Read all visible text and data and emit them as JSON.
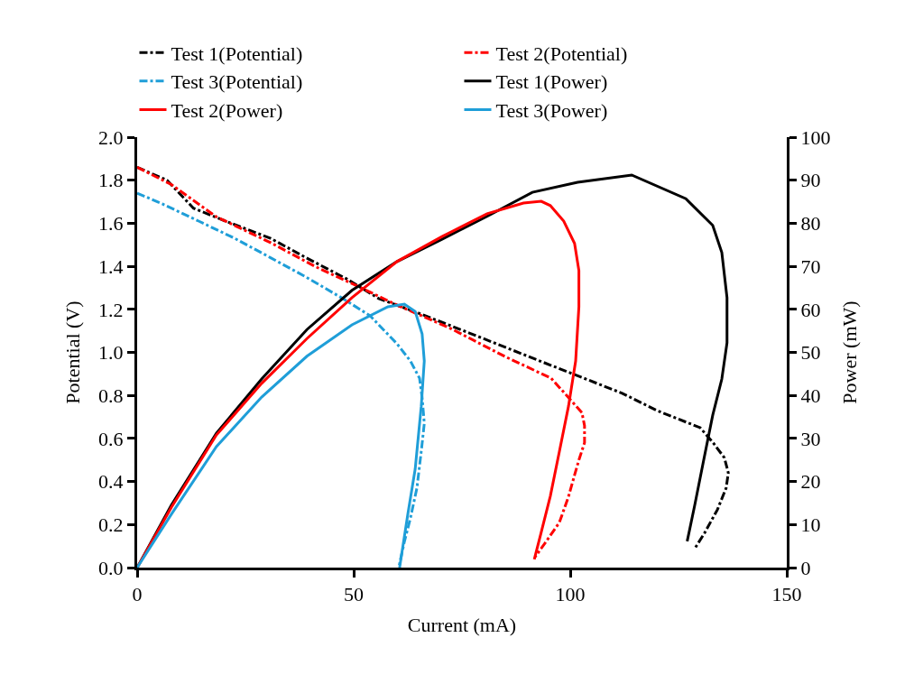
{
  "chart_data": {
    "type": "line",
    "xlabel": "Current (mA)",
    "ylabel": "Potential (V)",
    "y2label": "Power (mW)",
    "xlim": [
      0,
      150
    ],
    "xticks": [
      0,
      50,
      100,
      150
    ],
    "ylim": [
      0,
      2
    ],
    "yticks": [
      {
        "value": 0,
        "label": "0.0"
      },
      {
        "value": 0.2,
        "label": "0.2"
      },
      {
        "value": 0.4,
        "label": "0.4"
      },
      {
        "value": 0.6,
        "label": "0.6"
      },
      {
        "value": 0.8,
        "label": "0.8"
      },
      {
        "value": 1,
        "label": "1.0"
      },
      {
        "value": 1.2,
        "label": "1.2"
      },
      {
        "value": 1.4,
        "label": "1.4"
      },
      {
        "value": 1.6,
        "label": "1.6"
      },
      {
        "value": 1.8,
        "label": "1.8"
      },
      {
        "value": 2,
        "label": "2.0"
      }
    ],
    "y2lim": [
      0,
      100
    ],
    "y2ticks": [
      0,
      10,
      20,
      30,
      40,
      50,
      60,
      70,
      80,
      90,
      100
    ],
    "legend": "top",
    "marker": "none",
    "series": [
      {
        "name": "Test 1(Potential)",
        "color": "#000000",
        "line_style": "dashdot",
        "x": [
          0,
          6.9,
          13,
          20.4,
          30.8,
          39,
          48.5,
          55.8,
          64,
          76.7,
          93,
          112,
          120,
          130,
          133,
          135.6,
          136.5,
          136,
          134,
          131,
          128.8
        ],
        "values": [
          1.86,
          1.8,
          1.67,
          1.61,
          1.53,
          1.44,
          1.34,
          1.25,
          1.19,
          1.09,
          0.96,
          0.81,
          0.73,
          0.65,
          0.58,
          0.51,
          0.44,
          0.37,
          0.27,
          0.16,
          0.09
        ]
      },
      {
        "name": "Test 2(Potential)",
        "color": "#ff0000",
        "line_style": "dashdot",
        "x": [
          0,
          7.9,
          18.3,
          30.8,
          41,
          51.7,
          60,
          72.5,
          85,
          95.6,
          102.7,
          103.3,
          103.3,
          102,
          101,
          99.6,
          97.5,
          94.4,
          91.9
        ],
        "values": [
          1.86,
          1.78,
          1.63,
          1.51,
          1.4,
          1.3,
          1.22,
          1.11,
          0.98,
          0.88,
          0.72,
          0.66,
          0.58,
          0.5,
          0.43,
          0.33,
          0.21,
          0.12,
          0.05
        ]
      },
      {
        "name": "Test 3(Potential)",
        "color": "#1f9ed8",
        "line_style": "dashdot",
        "x": [
          0,
          5.8,
          14.2,
          22.5,
          30.8,
          39,
          47.5,
          53.8,
          60,
          63.1,
          65.2,
          65.8,
          66.3,
          65.6,
          64.6,
          63.1,
          61.7,
          60.4
        ],
        "values": [
          1.74,
          1.69,
          1.61,
          1.53,
          1.44,
          1.35,
          1.25,
          1.17,
          1.04,
          0.96,
          0.88,
          0.79,
          0.67,
          0.54,
          0.37,
          0.23,
          0.12,
          0
        ]
      },
      {
        "name": "Test 1(Power)",
        "color": "#000000",
        "line_style": "solid",
        "axis": "y2",
        "x": [
          0,
          7.9,
          18.3,
          28.75,
          39.2,
          49.6,
          60,
          70.4,
          80.8,
          91.25,
          101.7,
          114.2,
          126.7,
          132.9,
          135,
          136.2,
          136.2,
          135,
          132.9,
          130.8,
          128.75,
          127
        ],
        "values": [
          0,
          14.5,
          31.2,
          43.8,
          55.3,
          64.4,
          71.1,
          76.3,
          81.6,
          87.2,
          89.5,
          91.2,
          85.7,
          79.5,
          73.2,
          62.7,
          52.2,
          43.8,
          35.4,
          24.9,
          14.5,
          6.1
        ]
      },
      {
        "name": "Test 2(Power)",
        "color": "#ff0000",
        "line_style": "solid",
        "axis": "y2",
        "x": [
          0,
          7.9,
          18.3,
          28.75,
          39.2,
          49.6,
          60,
          70.4,
          80.8,
          89.2,
          93.3,
          95.4,
          98.5,
          101,
          102,
          102,
          101.25,
          99.6,
          97.5,
          95.4,
          93.3,
          91.7
        ],
        "values": [
          0,
          14,
          30.8,
          42.8,
          53.2,
          62.7,
          71.1,
          76.9,
          82.2,
          84.7,
          85.1,
          84.1,
          80.5,
          75.3,
          69,
          60.6,
          48,
          37.5,
          27,
          16.6,
          8.2,
          1.9
        ]
      },
      {
        "name": "Test 3(Power)",
        "color": "#1f9ed8",
        "line_style": "solid",
        "axis": "y2",
        "x": [
          0,
          7.9,
          18.3,
          28.75,
          39.2,
          49.6,
          57.9,
          61.7,
          64.2,
          65.8,
          66.3,
          65.6,
          64.2,
          62.5,
          60.6
        ],
        "values": [
          0,
          12.4,
          28.1,
          39.6,
          49.1,
          56.4,
          60.6,
          61.2,
          59.5,
          54.3,
          48,
          37.5,
          22.9,
          12.4,
          0
        ]
      }
    ]
  }
}
